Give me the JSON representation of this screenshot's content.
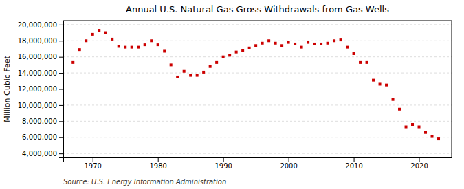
{
  "chart_data": {
    "type": "scatter",
    "title": "Annual U.S. Natural Gas Gross Withdrawals from Gas Wells",
    "ylabel": "Million Cubic Feet",
    "annotation": "Source: U.S. Energy Information Administration",
    "color": "#cc0000",
    "marker": "square",
    "grid": "y",
    "xlim": [
      1965.5,
      2025
    ],
    "xticks": [
      1970,
      1980,
      1990,
      2000,
      2010,
      2020
    ],
    "ylim": [
      3500000,
      20500000
    ],
    "yticks": [
      {
        "value": 4000000,
        "label": "4,000,000"
      },
      {
        "value": 6000000,
        "label": "6,000,000"
      },
      {
        "value": 8000000,
        "label": "8,000,000"
      },
      {
        "value": 10000000,
        "label": "10,000,000"
      },
      {
        "value": 12000000,
        "label": "12,000,000"
      },
      {
        "value": 14000000,
        "label": "14,000,000"
      },
      {
        "value": 16000000,
        "label": "16,000,000"
      },
      {
        "value": 18000000,
        "label": "18,000,000"
      },
      {
        "value": 20000000,
        "label": "20,000,000"
      }
    ],
    "x": [
      1967,
      1968,
      1969,
      1970,
      1971,
      1972,
      1973,
      1974,
      1975,
      1976,
      1977,
      1978,
      1979,
      1980,
      1981,
      1982,
      1983,
      1984,
      1985,
      1986,
      1987,
      1988,
      1989,
      1990,
      1991,
      1992,
      1993,
      1994,
      1995,
      1996,
      1997,
      1998,
      1999,
      2000,
      2001,
      2002,
      2003,
      2004,
      2005,
      2006,
      2007,
      2008,
      2009,
      2010,
      2011,
      2012,
      2013,
      2014,
      2015,
      2016,
      2017,
      2018,
      2019,
      2020,
      2021,
      2022,
      2023
    ],
    "values": [
      15300000,
      16900000,
      18000000,
      18800000,
      19300000,
      19000000,
      18200000,
      17300000,
      17200000,
      17200000,
      17200000,
      17500000,
      18000000,
      17500000,
      16700000,
      15000000,
      13500000,
      14200000,
      13700000,
      13700000,
      14100000,
      14800000,
      15300000,
      16000000,
      16200000,
      16600000,
      16800000,
      17100000,
      17400000,
      17700000,
      18000000,
      17700000,
      17400000,
      17800000,
      17600000,
      17200000,
      17800000,
      17600000,
      17600000,
      17700000,
      18000000,
      18100000,
      17200000,
      16400000,
      15300000,
      15300000,
      13100000,
      12600000,
      12500000,
      10700000,
      9500000,
      7300000,
      7600000,
      7300000,
      6600000,
      6100000,
      5800000
    ]
  }
}
